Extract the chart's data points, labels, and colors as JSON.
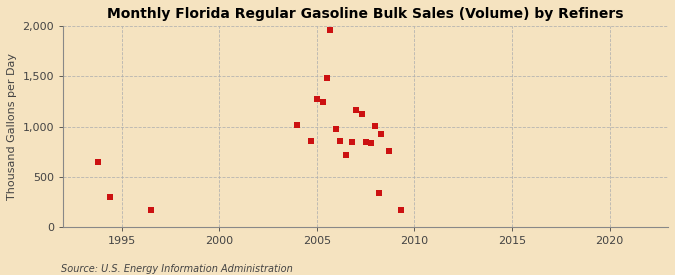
{
  "title": "Monthly Florida Regular Gasoline Bulk Sales (Volume) by Refiners",
  "ylabel": "Thousand Gallons per Day",
  "source": "Source: U.S. Energy Information Administration",
  "background_color": "#f5e3c0",
  "plot_background_color": "#f5e3c0",
  "marker_color": "#cc1111",
  "marker_size": 5,
  "xlim": [
    1992,
    2023
  ],
  "ylim": [
    0,
    2000
  ],
  "yticks": [
    0,
    500,
    1000,
    1500,
    2000
  ],
  "xticks": [
    1995,
    2000,
    2005,
    2010,
    2015,
    2020
  ],
  "data_x": [
    1993.8,
    1994.4,
    1996.5,
    2004.0,
    2004.7,
    2005.0,
    2005.3,
    2005.5,
    2005.7,
    2006.0,
    2006.2,
    2006.5,
    2006.8,
    2007.0,
    2007.3,
    2007.5,
    2007.8,
    2008.0,
    2008.3,
    2008.7,
    2009.3,
    2008.2
  ],
  "data_y": [
    650,
    295,
    165,
    1020,
    855,
    1275,
    1250,
    1480,
    1960,
    975,
    860,
    715,
    845,
    1165,
    1130,
    850,
    840,
    1010,
    930,
    760,
    165,
    340
  ],
  "grid_color": "#b0b0b0",
  "spine_color": "#888888",
  "tick_color": "#444444",
  "title_fontsize": 10,
  "ylabel_fontsize": 8,
  "tick_fontsize": 8,
  "source_fontsize": 7
}
